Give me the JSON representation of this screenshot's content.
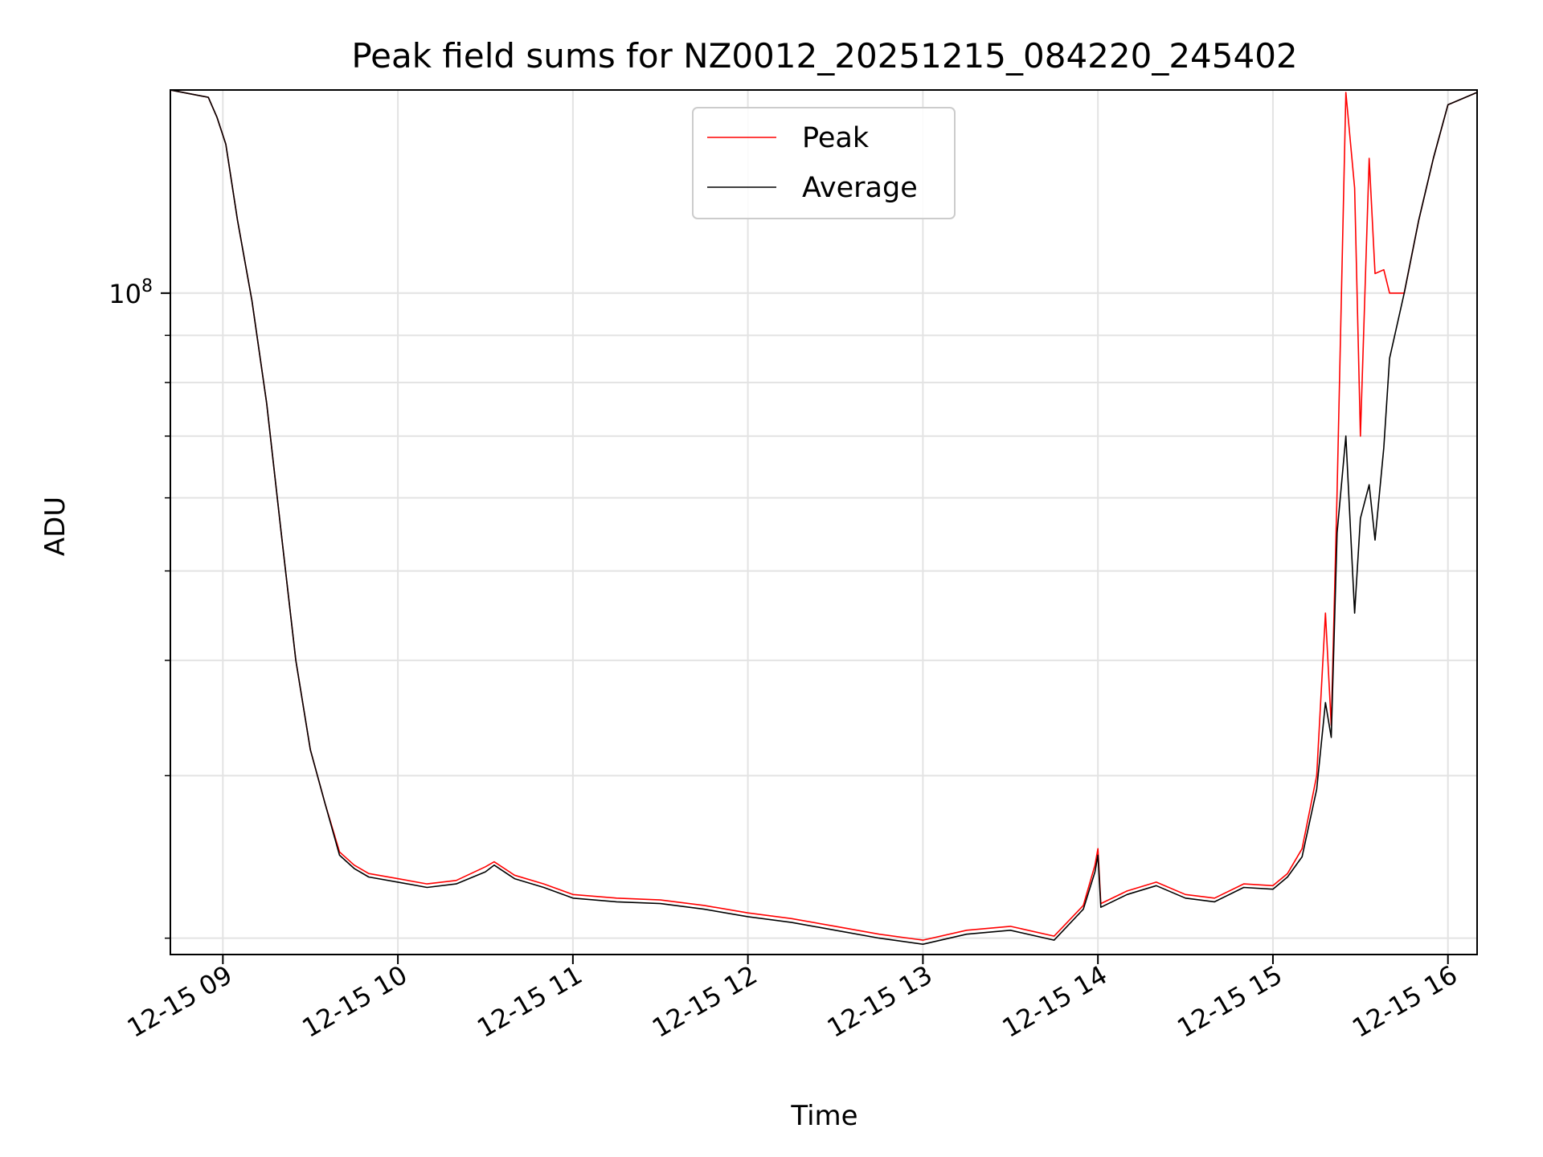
{
  "chart_data": {
    "type": "line",
    "title": "Peak field sums for NZ0012_20251215_084220_245402",
    "xlabel": "Time",
    "ylabel": "ADU",
    "yscale": "log",
    "xlim": [
      "2025-12-15 08:42",
      "2025-12-15 16:10"
    ],
    "ylim": [
      19200000,
      166000000
    ],
    "grid": true,
    "legend": "top-center",
    "x_ticks": [
      {
        "value": "2025-12-15 09:00",
        "label": "12-15 09"
      },
      {
        "value": "2025-12-15 10:00",
        "label": "12-15 10"
      },
      {
        "value": "2025-12-15 11:00",
        "label": "12-15 11"
      },
      {
        "value": "2025-12-15 12:00",
        "label": "12-15 12"
      },
      {
        "value": "2025-12-15 13:00",
        "label": "12-15 13"
      },
      {
        "value": "2025-12-15 14:00",
        "label": "12-15 14"
      },
      {
        "value": "2025-12-15 15:00",
        "label": "12-15 15"
      },
      {
        "value": "2025-12-15 16:00",
        "label": "12-15 16"
      }
    ],
    "y_major_ticks": [
      {
        "value": 100000000,
        "base": "10",
        "exponent": "8"
      }
    ],
    "y_minor_ticks": [
      20000000,
      30000000,
      40000000,
      50000000,
      60000000,
      70000000,
      80000000,
      90000000,
      200000000
    ],
    "series": [
      {
        "name": "Peak",
        "color": "#ff0000",
        "x": [
          "2025-12-15 08:42",
          "2025-12-15 08:55",
          "2025-12-15 08:58",
          "2025-12-15 09:01",
          "2025-12-15 09:05",
          "2025-12-15 09:10",
          "2025-12-15 09:15",
          "2025-12-15 09:20",
          "2025-12-15 09:25",
          "2025-12-15 09:30",
          "2025-12-15 09:35",
          "2025-12-15 09:40",
          "2025-12-15 09:45",
          "2025-12-15 09:50",
          "2025-12-15 10:00",
          "2025-12-15 10:10",
          "2025-12-15 10:20",
          "2025-12-15 10:30",
          "2025-12-15 10:33",
          "2025-12-15 10:40",
          "2025-12-15 10:50",
          "2025-12-15 11:00",
          "2025-12-15 11:15",
          "2025-12-15 11:30",
          "2025-12-15 11:45",
          "2025-12-15 12:00",
          "2025-12-15 12:15",
          "2025-12-15 12:30",
          "2025-12-15 12:45",
          "2025-12-15 13:00",
          "2025-12-15 13:15",
          "2025-12-15 13:30",
          "2025-12-15 13:45",
          "2025-12-15 13:55",
          "2025-12-15 13:59",
          "2025-12-15 14:00",
          "2025-12-15 14:01",
          "2025-12-15 14:10",
          "2025-12-15 14:20",
          "2025-12-15 14:30",
          "2025-12-15 14:40",
          "2025-12-15 14:50",
          "2025-12-15 15:00",
          "2025-12-15 15:05",
          "2025-12-15 15:10",
          "2025-12-15 15:15",
          "2025-12-15 15:18",
          "2025-12-15 15:20",
          "2025-12-15 15:22",
          "2025-12-15 15:25",
          "2025-12-15 15:28",
          "2025-12-15 15:30",
          "2025-12-15 15:33",
          "2025-12-15 15:35",
          "2025-12-15 15:38",
          "2025-12-15 15:40",
          "2025-12-15 15:45",
          "2025-12-15 15:50",
          "2025-12-15 15:55",
          "2025-12-15 16:00",
          "2025-12-15 16:10"
        ],
        "y": [
          166000000,
          163000000,
          155000000,
          145000000,
          120000000,
          98000000,
          76000000,
          55000000,
          40000000,
          32000000,
          28000000,
          24800000,
          24000000,
          23500000,
          23200000,
          22900000,
          23100000,
          23900000,
          24200000,
          23400000,
          22900000,
          22300000,
          22100000,
          22000000,
          21700000,
          21300000,
          21000000,
          20600000,
          20200000,
          19900000,
          20400000,
          20600000,
          20100000,
          21700000,
          24000000,
          25000000,
          21800000,
          22500000,
          23000000,
          22300000,
          22100000,
          22900000,
          22800000,
          23500000,
          25000000,
          30000000,
          45000000,
          34000000,
          61000000,
          165000000,
          130000000,
          70000000,
          140000000,
          105000000,
          106000000,
          100000000,
          100000000,
          120000000,
          140000000,
          160000000,
          165000000
        ]
      },
      {
        "name": "Average",
        "color": "#000000",
        "x": [
          "2025-12-15 08:42",
          "2025-12-15 08:55",
          "2025-12-15 08:58",
          "2025-12-15 09:01",
          "2025-12-15 09:05",
          "2025-12-15 09:10",
          "2025-12-15 09:15",
          "2025-12-15 09:20",
          "2025-12-15 09:25",
          "2025-12-15 09:30",
          "2025-12-15 09:35",
          "2025-12-15 09:40",
          "2025-12-15 09:45",
          "2025-12-15 09:50",
          "2025-12-15 10:00",
          "2025-12-15 10:10",
          "2025-12-15 10:20",
          "2025-12-15 10:30",
          "2025-12-15 10:33",
          "2025-12-15 10:40",
          "2025-12-15 10:50",
          "2025-12-15 11:00",
          "2025-12-15 11:15",
          "2025-12-15 11:30",
          "2025-12-15 11:45",
          "2025-12-15 12:00",
          "2025-12-15 12:15",
          "2025-12-15 12:30",
          "2025-12-15 12:45",
          "2025-12-15 13:00",
          "2025-12-15 13:15",
          "2025-12-15 13:30",
          "2025-12-15 13:45",
          "2025-12-15 13:55",
          "2025-12-15 13:59",
          "2025-12-15 14:00",
          "2025-12-15 14:01",
          "2025-12-15 14:10",
          "2025-12-15 14:20",
          "2025-12-15 14:30",
          "2025-12-15 14:40",
          "2025-12-15 14:50",
          "2025-12-15 15:00",
          "2025-12-15 15:05",
          "2025-12-15 15:10",
          "2025-12-15 15:15",
          "2025-12-15 15:18",
          "2025-12-15 15:20",
          "2025-12-15 15:22",
          "2025-12-15 15:25",
          "2025-12-15 15:28",
          "2025-12-15 15:30",
          "2025-12-15 15:33",
          "2025-12-15 15:35",
          "2025-12-15 15:38",
          "2025-12-15 15:40",
          "2025-12-15 15:45",
          "2025-12-15 15:50",
          "2025-12-15 15:55",
          "2025-12-15 16:00",
          "2025-12-15 16:10"
        ],
        "y": [
          166000000,
          163000000,
          155000000,
          145000000,
          120000000,
          98000000,
          76000000,
          55000000,
          40000000,
          32000000,
          28000000,
          24600000,
          23800000,
          23300000,
          23000000,
          22700000,
          22900000,
          23600000,
          24000000,
          23200000,
          22700000,
          22100000,
          21900000,
          21800000,
          21500000,
          21100000,
          20800000,
          20400000,
          20000000,
          19700000,
          20200000,
          20400000,
          19900000,
          21500000,
          23600000,
          24600000,
          21600000,
          22300000,
          22800000,
          22100000,
          21900000,
          22700000,
          22600000,
          23300000,
          24500000,
          29000000,
          36000000,
          33000000,
          55000000,
          70000000,
          45000000,
          57000000,
          62000000,
          54000000,
          68000000,
          85000000,
          100000000,
          120000000,
          140000000,
          160000000,
          165000000
        ]
      }
    ]
  }
}
